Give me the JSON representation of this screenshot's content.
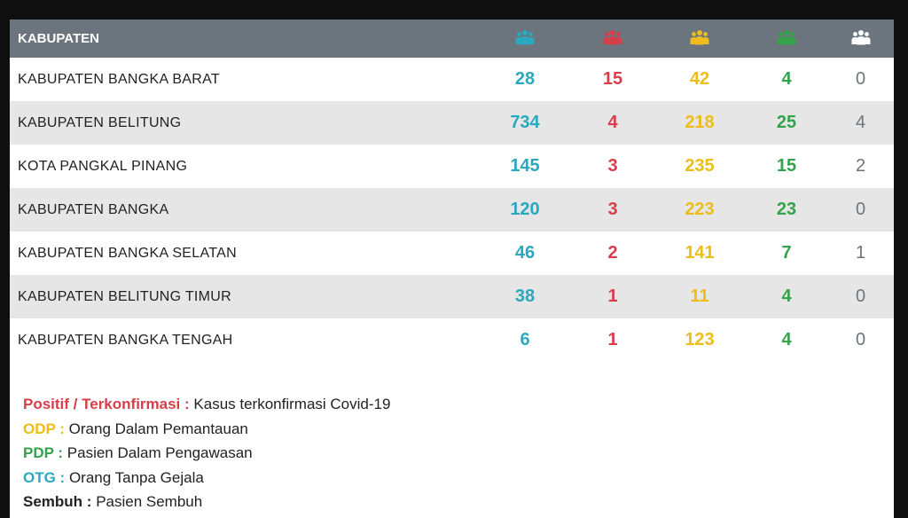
{
  "table": {
    "header": {
      "name": "KABUPATEN",
      "icons": [
        {
          "name": "otg-people-icon",
          "color": "#2aa8bd"
        },
        {
          "name": "positive-people-icon",
          "color": "#d63f49"
        },
        {
          "name": "odp-people-icon",
          "color": "#ecbd1c"
        },
        {
          "name": "pdp-people-icon",
          "color": "#35a24c"
        },
        {
          "name": "recovered-people-icon",
          "color": "#ffffff"
        }
      ]
    },
    "rows": [
      {
        "name": "KABUPATEN BANGKA BARAT",
        "otg": "28",
        "positif": "15",
        "odp": "42",
        "pdp": "4",
        "sembuh": "0"
      },
      {
        "name": "KABUPATEN BELITUNG",
        "otg": "734",
        "positif": "4",
        "odp": "218",
        "pdp": "25",
        "sembuh": "4"
      },
      {
        "name": "KOTA PANGKAL PINANG",
        "otg": "145",
        "positif": "3",
        "odp": "235",
        "pdp": "15",
        "sembuh": "2"
      },
      {
        "name": "KABUPATEN BANGKA",
        "otg": "120",
        "positif": "3",
        "odp": "223",
        "pdp": "23",
        "sembuh": "0"
      },
      {
        "name": "KABUPATEN BANGKA SELATAN",
        "otg": "46",
        "positif": "2",
        "odp": "141",
        "pdp": "7",
        "sembuh": "1"
      },
      {
        "name": "KABUPATEN BELITUNG TIMUR",
        "otg": "38",
        "positif": "1",
        "odp": "11",
        "pdp": "4",
        "sembuh": "0"
      },
      {
        "name": "KABUPATEN BANGKA TENGAH",
        "otg": "6",
        "positif": "1",
        "odp": "123",
        "pdp": "4",
        "sembuh": "0"
      }
    ]
  },
  "legend": [
    {
      "term": "Positif / Terkonfirmasi :",
      "desc": "Kasus terkonfirmasi Covid-19",
      "color": "#d63f49"
    },
    {
      "term": "ODP :",
      "desc": "Orang Dalam Pemantauan",
      "color": "#ecbd1c"
    },
    {
      "term": "PDP :",
      "desc": "Pasien Dalam Pengawasan",
      "color": "#35a24c"
    },
    {
      "term": "OTG :",
      "desc": "Orang Tanpa Gejala",
      "color": "#2aa8bd"
    },
    {
      "term": "Sembuh :",
      "desc": "Pasien Sembuh",
      "color": "#222222"
    }
  ]
}
